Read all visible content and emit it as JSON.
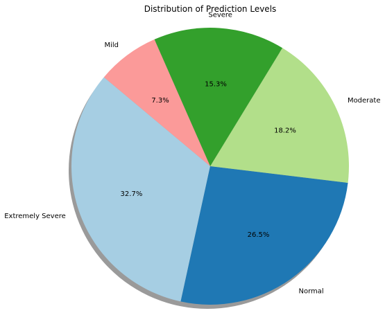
{
  "chart_data": {
    "type": "pie",
    "title": "Distribution of Prediction Levels",
    "slices": [
      {
        "label": "Extremely Severe",
        "value": 32.7,
        "pct_label": "32.7%",
        "color": "#a6cee3"
      },
      {
        "label": "Normal",
        "value": 26.5,
        "pct_label": "26.5%",
        "color": "#1f78b4"
      },
      {
        "label": "Moderate",
        "value": 18.2,
        "pct_label": "18.2%",
        "color": "#b2df8a"
      },
      {
        "label": "Severe",
        "value": 15.3,
        "pct_label": "15.3%",
        "color": "#33a02c"
      },
      {
        "label": "Mild",
        "value": 7.3,
        "pct_label": "7.3%",
        "color": "#fb9a99"
      }
    ],
    "start_angle_deg": 140,
    "direction": "counterclockwise",
    "shadow": true,
    "legend": "none"
  }
}
